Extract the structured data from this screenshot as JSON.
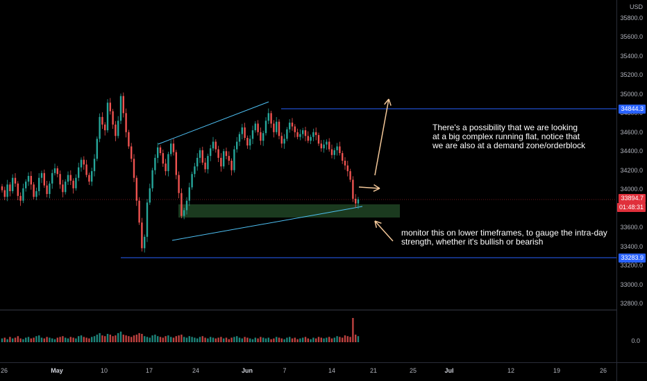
{
  "currency": "USD",
  "price_axis": {
    "ticks": [
      "35800.0",
      "35600.0",
      "35400.0",
      "35200.0",
      "35000.0",
      "34800.0",
      "34600.0",
      "34400.0",
      "34200.0",
      "34000.0",
      "33800.0",
      "33600.0",
      "33400.0",
      "33200.0",
      "33000.0",
      "32800.0"
    ]
  },
  "time_axis": {
    "ticks": [
      {
        "label": "26",
        "bold": false
      },
      {
        "label": "May",
        "bold": true
      },
      {
        "label": "10",
        "bold": false
      },
      {
        "label": "17",
        "bold": false
      },
      {
        "label": "24",
        "bold": false
      },
      {
        "label": "Jun",
        "bold": true
      },
      {
        "label": "7",
        "bold": false
      },
      {
        "label": "14",
        "bold": false
      },
      {
        "label": "21",
        "bold": false
      },
      {
        "label": "25",
        "bold": false
      },
      {
        "label": "Jul",
        "bold": true
      },
      {
        "label": "12",
        "bold": false
      },
      {
        "label": "19",
        "bold": false
      },
      {
        "label": "26",
        "bold": false
      }
    ]
  },
  "price_tags": {
    "resistance": "34844.3",
    "support": "33283.9",
    "current_price": "33894.7",
    "countdown": "01:48:31"
  },
  "volume_axis": {
    "label": "0.0"
  },
  "annotations": {
    "top_note": "There's a possibility that we are looking\nat a big complex running flat, notice that\nwe are also at a demand zone/orderblock",
    "bottom_note": "monitor this on lower timeframes, to gauge the intra-day\nstrength, whether it's bullish or bearish"
  },
  "colors": {
    "up": "#26a69a",
    "down": "#ef5350",
    "horizontal_line": "#2962ff",
    "channel_line": "#4fc3f7",
    "arrow": "#f5c99a",
    "demand_zone": "#1b3a1f",
    "current_price_line": "#e0303b"
  },
  "chart_data": {
    "type": "candlestick",
    "y_range": [
      32700,
      35900
    ],
    "series": [
      {
        "name": "",
        "values": [
          33990,
          33920,
          34050,
          33980,
          34120,
          34060,
          33930,
          33880,
          34010,
          34080,
          34140,
          34050,
          33920,
          33980,
          34120,
          34170,
          34040,
          33950,
          34060,
          34170,
          34220,
          34160,
          34050,
          33970,
          34080,
          34150,
          34090,
          34010,
          34120,
          34230,
          34310,
          34260,
          34150,
          34080,
          34190,
          34320,
          34530,
          34760,
          34680,
          34620,
          34910,
          34820,
          34680,
          34560,
          34720,
          34980,
          34800,
          34600,
          34450,
          34320,
          34120,
          33880,
          33650,
          33380,
          33500,
          33860,
          34010,
          34200,
          34330,
          34440,
          34380,
          34270,
          34190,
          34370,
          34480,
          34390,
          34150,
          33960,
          33720,
          33780,
          33880,
          34020,
          34160,
          34240,
          34330,
          34410,
          34280,
          34210,
          34350,
          34430,
          34500,
          34420,
          34330,
          34240,
          34400,
          34350,
          34300,
          34200,
          34420,
          34500,
          34580,
          34650,
          34540,
          34460,
          34530,
          34620,
          34690,
          34600,
          34510,
          34590,
          34720,
          34800,
          34690,
          34600,
          34710,
          34560,
          34480,
          34530,
          34630,
          34700,
          34660,
          34600,
          34550,
          34580,
          34620,
          34560,
          34510,
          34550,
          34600,
          34570,
          34480,
          34430,
          34470,
          34500,
          34420,
          34360,
          34410,
          34450,
          34380,
          34300,
          34250,
          34190,
          34100,
          33900,
          33850,
          33894.7
        ]
      }
    ],
    "volume": [
      5,
      6,
      4,
      7,
      5,
      6,
      8,
      5,
      4,
      6,
      7,
      5,
      6,
      8,
      9,
      6,
      5,
      7,
      6,
      5,
      4,
      6,
      7,
      8,
      6,
      5,
      7,
      6,
      5,
      8,
      9,
      7,
      6,
      5,
      7,
      8,
      10,
      12,
      9,
      8,
      11,
      10,
      8,
      9,
      12,
      14,
      10,
      9,
      8,
      7,
      9,
      10,
      12,
      11,
      8,
      7,
      6,
      9,
      10,
      8,
      7,
      6,
      8,
      9,
      7,
      6,
      8,
      9,
      10,
      7,
      6,
      8,
      7,
      6,
      5,
      7,
      8,
      6,
      5,
      7,
      6,
      5,
      6,
      7,
      5,
      6,
      4,
      6,
      7,
      8,
      6,
      5,
      7,
      6,
      5,
      4,
      6,
      5,
      7,
      6,
      5,
      6,
      4,
      5,
      7,
      6,
      5,
      4,
      6,
      7,
      5,
      6,
      4,
      5,
      6,
      7,
      5,
      4,
      6,
      5,
      7,
      6,
      5,
      6,
      7,
      5,
      6,
      8,
      7,
      6,
      9,
      8,
      7,
      32,
      10,
      8
    ],
    "levels": {
      "resistance": 34844.3,
      "support": 33283.9,
      "current": 33894.7
    }
  }
}
